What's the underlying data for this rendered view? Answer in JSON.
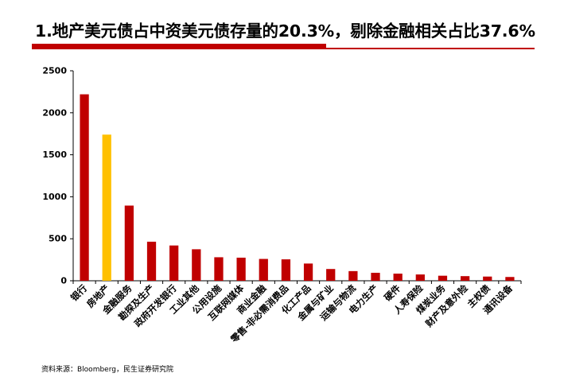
{
  "header": {
    "title": "1.地产美元债占中资美元债存量的20.3%，剔除金融相关占比37.6%"
  },
  "footer": {
    "source": "资料来源：Bloomberg，民生证券研究院"
  },
  "colors": {
    "bar": "#c00000",
    "highlight": "#ffc000",
    "accent": "#c00000"
  },
  "chart_data": {
    "type": "bar",
    "title": "",
    "xlabel": "",
    "ylabel": "",
    "ylim": [
      0,
      2500
    ],
    "yticks": [
      "0",
      "500",
      "1000",
      "1500",
      "2000",
      "2500"
    ],
    "grid": false,
    "legend": "none",
    "highlight_index": 1,
    "categories": [
      "银行",
      "房地产",
      "金融服务",
      "勘探及生产",
      "政府开发银行",
      "工业其他",
      "公用设施",
      "互联网媒体",
      "商业金融",
      "零售-非必需消费品",
      "化工产品",
      "金属与矿业",
      "运输与物流",
      "电力生产",
      "硬件",
      "人寿保险",
      "煤炭业务",
      "财产及意外险",
      "主权债",
      "通讯设备"
    ],
    "values": [
      2220,
      1740,
      895,
      465,
      420,
      375,
      280,
      275,
      260,
      255,
      205,
      140,
      115,
      95,
      85,
      75,
      60,
      55,
      50,
      45
    ]
  }
}
